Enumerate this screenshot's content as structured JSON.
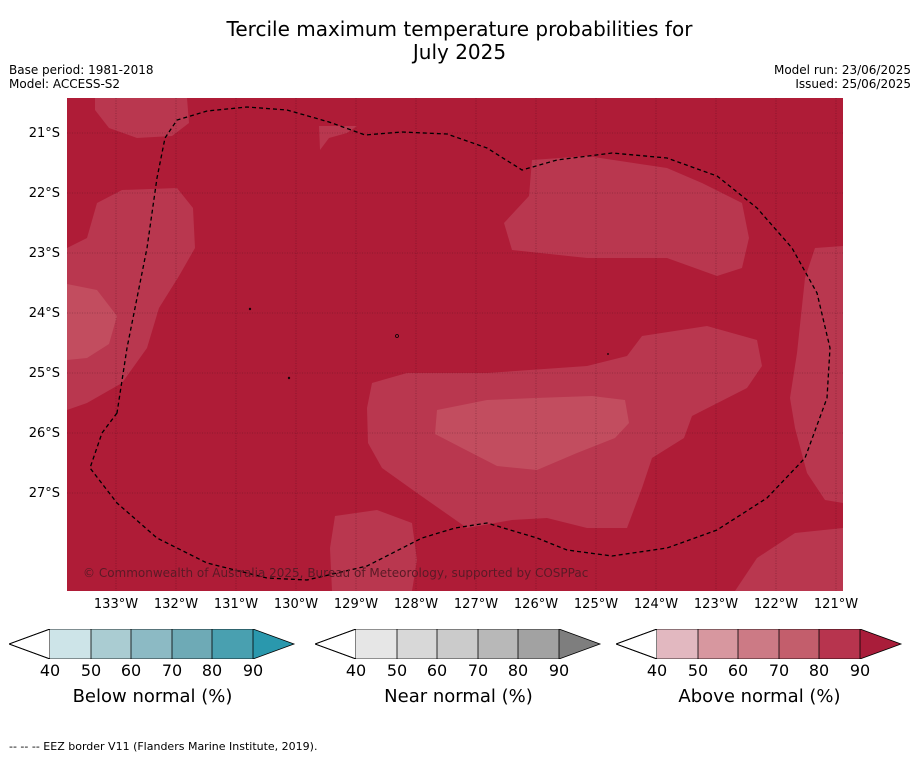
{
  "title_line1": "Tercile maximum temperature probabilities for",
  "title_line2": "July 2025",
  "meta_left": [
    "Base period: 1981-2018",
    "Model: ACCESS-S2"
  ],
  "meta_right": [
    "Model run: 23/06/2025",
    "Issued: 25/06/2025"
  ],
  "copyright": "© Commonwealth of Australia 2025, Bureau of Meteorology, supported by COSPPac",
  "lat_labels": [
    "21°S",
    "22°S",
    "23°S",
    "24°S",
    "25°S",
    "26°S",
    "27°S"
  ],
  "lon_labels": [
    "133°W",
    "132°W",
    "131°W",
    "130°W",
    "129°W",
    "128°W",
    "127°W",
    "126°W",
    "125°W",
    "124°W",
    "123°W",
    "122°W",
    "121°W"
  ],
  "colorbars": [
    {
      "label": "Below normal (%)",
      "ticks": [
        "40",
        "50",
        "60",
        "70",
        "80",
        "90"
      ],
      "colors": [
        "#cde4e8",
        "#aaccd2",
        "#8cbac4",
        "#6eaab6",
        "#49a0b0"
      ],
      "extend_color": "#2a98ad"
    },
    {
      "label": "Near normal (%)",
      "ticks": [
        "40",
        "50",
        "60",
        "70",
        "80",
        "90"
      ],
      "colors": [
        "#e6e6e6",
        "#d8d8d8",
        "#cbcbcb",
        "#b8b8b8",
        "#a2a2a2"
      ],
      "extend_color": "#7e7e7e"
    },
    {
      "label": "Above normal (%)",
      "ticks": [
        "40",
        "50",
        "60",
        "70",
        "80",
        "90"
      ],
      "colors": [
        "#e2b8c0",
        "#d7979f",
        "#cc7a85",
        "#c35e6c",
        "#b7344e"
      ],
      "extend_color": "#a91d3a"
    }
  ],
  "footnote": "--  --  -- EEZ border V11 (Flanders Marine Institute, 2019).",
  "colors": {
    "above_80_90": "#af1c37",
    "above_70_80": "#b9374f",
    "above_60_70": "#c24d5f"
  }
}
